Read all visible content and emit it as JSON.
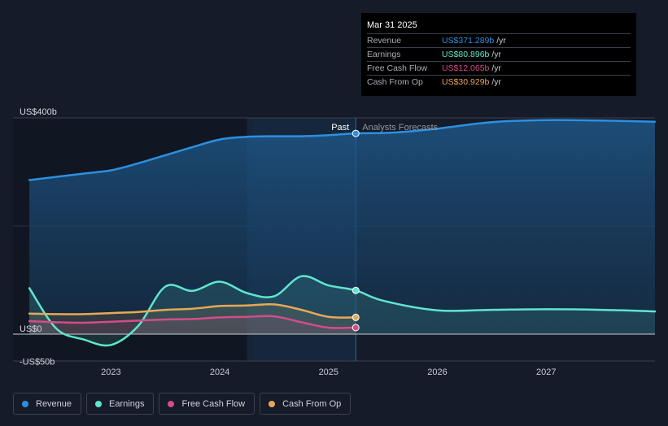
{
  "chart_data": {
    "type": "line",
    "title": "",
    "x_axis": {
      "ticks": [
        2023,
        2024,
        2025,
        2026,
        2027
      ],
      "range": [
        2022.1,
        2028.0
      ]
    },
    "y_axis": {
      "range": [
        -50,
        400
      ],
      "tick_labels": [
        "US$400b",
        "US$0",
        "-US$50b"
      ]
    },
    "divider_labels": {
      "past": "Past",
      "forecast": "Analysts Forecasts"
    },
    "divider_x": 2025.25,
    "shaded_region": [
      2024.25,
      2025.25
    ],
    "series": [
      {
        "name": "Revenue",
        "color": "#2d8fe0",
        "x": [
          2022.25,
          2022.5,
          2022.75,
          2023.0,
          2023.25,
          2023.5,
          2023.75,
          2024.0,
          2024.25,
          2024.5,
          2024.75,
          2025.0,
          2025.25,
          2025.5,
          2025.75,
          2026.0,
          2026.5,
          2027.0,
          2027.5,
          2028.0
        ],
        "values": [
          285,
          291,
          297,
          303,
          316,
          331,
          346,
          360,
          365,
          366,
          366,
          368,
          371.289,
          372,
          375,
          380,
          392,
          396,
          395,
          393
        ]
      },
      {
        "name": "Earnings",
        "color": "#5ee6cf",
        "x": [
          2022.25,
          2022.5,
          2022.75,
          2023.0,
          2023.25,
          2023.5,
          2023.75,
          2024.0,
          2024.25,
          2024.5,
          2024.75,
          2025.0,
          2025.25,
          2025.5,
          2026.0,
          2026.5,
          2027.0,
          2027.5,
          2028.0
        ],
        "values": [
          85,
          10,
          -10,
          -20,
          15,
          88,
          80,
          97,
          76,
          70,
          107,
          90,
          80.896,
          62,
          44,
          45,
          46,
          45,
          42
        ]
      },
      {
        "name": "Free Cash Flow",
        "color": "#d44c8a",
        "x": [
          2022.25,
          2022.5,
          2022.75,
          2023.0,
          2023.25,
          2023.5,
          2023.75,
          2024.0,
          2024.25,
          2024.5,
          2024.75,
          2025.0,
          2025.25
        ],
        "values": [
          24,
          22,
          21,
          23,
          25,
          27,
          28,
          31,
          32,
          33,
          22,
          12,
          12.065
        ]
      },
      {
        "name": "Cash From Op",
        "color": "#e8a857",
        "x": [
          2022.25,
          2022.5,
          2022.75,
          2023.0,
          2023.25,
          2023.5,
          2023.75,
          2024.0,
          2024.25,
          2024.5,
          2024.75,
          2025.0,
          2025.25
        ],
        "values": [
          38,
          37,
          37,
          39,
          41,
          45,
          47,
          52,
          53,
          55,
          45,
          32,
          30.929
        ]
      }
    ],
    "tooltip": {
      "date": "Mar 31 2025",
      "unit": "/yr",
      "rows": [
        {
          "label": "Revenue",
          "value": "US$371.289b",
          "color": "#2d8fe0"
        },
        {
          "label": "Earnings",
          "value": "US$80.896b",
          "color": "#5ee6cf"
        },
        {
          "label": "Free Cash Flow",
          "value": "US$12.065b",
          "color": "#d44c8a"
        },
        {
          "label": "Cash From Op",
          "value": "US$30.929b",
          "color": "#e8a857"
        }
      ]
    }
  },
  "legend": [
    {
      "label": "Revenue",
      "color": "#2d8fe0"
    },
    {
      "label": "Earnings",
      "color": "#5ee6cf"
    },
    {
      "label": "Free Cash Flow",
      "color": "#d44c8a"
    },
    {
      "label": "Cash From Op",
      "color": "#e8a857"
    }
  ]
}
